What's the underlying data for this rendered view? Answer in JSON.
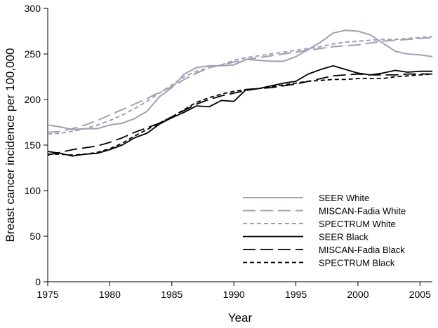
{
  "chart_data": {
    "type": "line",
    "title": "",
    "xlabel": "Year",
    "ylabel": "Breast cancer incidence per 100,000",
    "xlim": [
      1975,
      2006
    ],
    "ylim": [
      0,
      300
    ],
    "xticks": [
      1975,
      1980,
      1985,
      1990,
      1995,
      2000,
      2005
    ],
    "yticks": [
      0,
      50,
      100,
      150,
      200,
      250,
      300
    ],
    "grid": false,
    "legend_position": "bottom-right",
    "series": [
      {
        "name": "SEER White",
        "color": "#a0a0b4",
        "dash": "solid",
        "x": [
          1975,
          1976,
          1977,
          1978,
          1979,
          1980,
          1981,
          1982,
          1983,
          1984,
          1985,
          1986,
          1987,
          1988,
          1989,
          1990,
          1991,
          1992,
          1993,
          1994,
          1995,
          1996,
          1997,
          1998,
          1999,
          2000,
          2001,
          2002,
          2003,
          2004,
          2005,
          2006
        ],
        "y": [
          172,
          170,
          167,
          168,
          168,
          172,
          174,
          179,
          187,
          203,
          213,
          228,
          235,
          237,
          237,
          238,
          244,
          243,
          242,
          242,
          247,
          255,
          263,
          273,
          276,
          275,
          271,
          262,
          253,
          250,
          249,
          247
        ]
      },
      {
        "name": "MISCAN-Fadia White",
        "color": "#a0a0b4",
        "dash": "long",
        "x": [
          1975,
          1976,
          1977,
          1978,
          1979,
          1980,
          1981,
          1982,
          1983,
          1984,
          1985,
          1986,
          1987,
          1988,
          1989,
          1990,
          1991,
          1992,
          1993,
          1994,
          1995,
          1996,
          1997,
          1998,
          1999,
          2000,
          2001,
          2002,
          2003,
          2004,
          2005,
          2006
        ],
        "y": [
          164,
          165,
          168,
          172,
          177,
          183,
          189,
          195,
          201,
          208,
          214,
          222,
          229,
          235,
          238,
          241,
          244,
          246,
          248,
          250,
          252,
          254,
          256,
          258,
          259,
          260,
          262,
          264,
          265,
          266,
          267,
          268
        ]
      },
      {
        "name": "SPECTRUM White",
        "color": "#a0a0b4",
        "dash": "short",
        "x": [
          1975,
          1976,
          1977,
          1978,
          1979,
          1980,
          1981,
          1982,
          1983,
          1984,
          1985,
          1986,
          1987,
          1988,
          1989,
          1990,
          1991,
          1992,
          1993,
          1994,
          1995,
          1996,
          1997,
          1998,
          1999,
          2000,
          2001,
          2002,
          2003,
          2004,
          2005,
          2006
        ],
        "y": [
          162,
          163,
          165,
          168,
          172,
          177,
          183,
          190,
          198,
          207,
          216,
          225,
          231,
          235,
          238,
          243,
          246,
          248,
          250,
          252,
          254,
          256,
          258,
          261,
          263,
          264,
          265,
          266,
          266,
          267,
          268,
          269
        ]
      },
      {
        "name": "SEER Black",
        "color": "#000000",
        "dash": "solid",
        "x": [
          1975,
          1976,
          1977,
          1978,
          1979,
          1980,
          1981,
          1982,
          1983,
          1984,
          1985,
          1986,
          1987,
          1988,
          1989,
          1990,
          1991,
          1992,
          1993,
          1994,
          1995,
          1996,
          1997,
          1998,
          1999,
          2000,
          2001,
          2002,
          2003,
          2004,
          2005,
          2006
        ],
        "y": [
          143,
          141,
          138,
          140,
          141,
          145,
          150,
          158,
          163,
          173,
          180,
          186,
          193,
          192,
          199,
          198,
          211,
          212,
          215,
          218,
          220,
          228,
          233,
          237,
          233,
          229,
          227,
          229,
          232,
          230,
          231,
          231
        ]
      },
      {
        "name": "MISCAN-Fadia Black",
        "color": "#000000",
        "dash": "long",
        "x": [
          1975,
          1976,
          1977,
          1978,
          1979,
          1980,
          1981,
          1982,
          1983,
          1984,
          1985,
          1986,
          1987,
          1988,
          1989,
          1990,
          1991,
          1992,
          1993,
          1994,
          1995,
          1996,
          1997,
          1998,
          1999,
          2000,
          2001,
          2002,
          2003,
          2004,
          2005,
          2006
        ],
        "y": [
          139,
          142,
          145,
          147,
          149,
          153,
          158,
          164,
          169,
          174,
          181,
          188,
          195,
          200,
          204,
          207,
          210,
          212,
          213,
          215,
          217,
          220,
          223,
          226,
          227,
          228,
          227,
          227,
          227,
          228,
          228,
          228
        ]
      },
      {
        "name": "SPECTRUM Black",
        "color": "#000000",
        "dash": "short",
        "x": [
          1975,
          1976,
          1977,
          1978,
          1979,
          1980,
          1981,
          1982,
          1983,
          1984,
          1985,
          1986,
          1987,
          1988,
          1989,
          1990,
          1991,
          1992,
          1993,
          1994,
          1995,
          1996,
          1997,
          1998,
          1999,
          2000,
          2001,
          2002,
          2003,
          2004,
          2005,
          2006
        ],
        "y": [
          140,
          140,
          139,
          140,
          142,
          146,
          152,
          160,
          167,
          174,
          181,
          189,
          197,
          202,
          206,
          209,
          211,
          212,
          214,
          216,
          218,
          220,
          221,
          222,
          222,
          223,
          223,
          223,
          225,
          226,
          227,
          228
        ]
      }
    ]
  }
}
